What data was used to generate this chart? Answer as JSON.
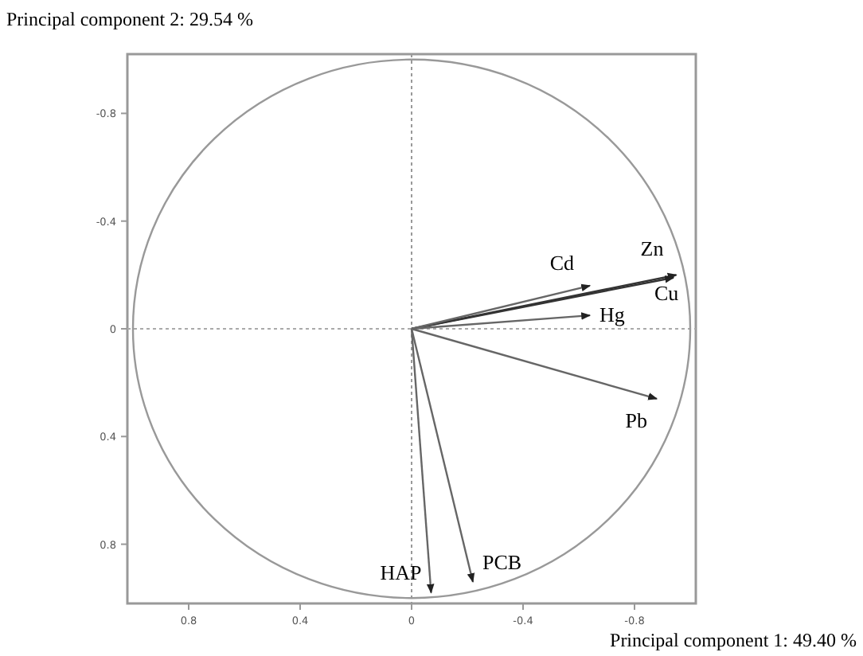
{
  "chart_data": {
    "type": "line",
    "xlabel": "Principal component 1: 49.40 %",
    "ylabel": "Principal component 2: 29.54 %",
    "xlim": [
      1.02,
      -1.02
    ],
    "ylim": [
      1.02,
      -1.02
    ],
    "xticks": [
      0.8,
      0.4,
      0,
      -0.4,
      -0.8
    ],
    "yticks": [
      0.8,
      0.4,
      0,
      -0.4,
      -0.8
    ],
    "grid": false,
    "marker": "none",
    "line_style": "solid",
    "ref_lines": [
      {
        "axis": "x",
        "value": 0,
        "line_style": "dotted",
        "color": "#999999"
      },
      {
        "axis": "y",
        "value": 0,
        "line_style": "dotted",
        "color": "#aaaaaa"
      }
    ],
    "series": [
      {
        "name": "Zn",
        "color": "#333333",
        "x": [
          0,
          -0.95
        ],
        "values": [
          0,
          -0.2
        ]
      },
      {
        "name": "Cu",
        "color": "#333333",
        "x": [
          0,
          -0.94
        ],
        "values": [
          0,
          -0.19
        ]
      },
      {
        "name": "Cd",
        "color": "#666666",
        "x": [
          0,
          -0.64
        ],
        "values": [
          0,
          -0.16
        ]
      },
      {
        "name": "Hg",
        "color": "#666666",
        "x": [
          0,
          -0.64
        ],
        "values": [
          0,
          -0.05
        ]
      },
      {
        "name": "Pb",
        "color": "#666666",
        "x": [
          0,
          -0.88
        ],
        "values": [
          0,
          0.26
        ]
      },
      {
        "name": "PCB",
        "color": "#666666",
        "x": [
          0,
          -0.22
        ],
        "values": [
          0,
          0.94
        ]
      },
      {
        "name": "HAP",
        "color": "#666666",
        "x": [
          0,
          -0.07
        ],
        "values": [
          0,
          0.98
        ]
      }
    ]
  }
}
